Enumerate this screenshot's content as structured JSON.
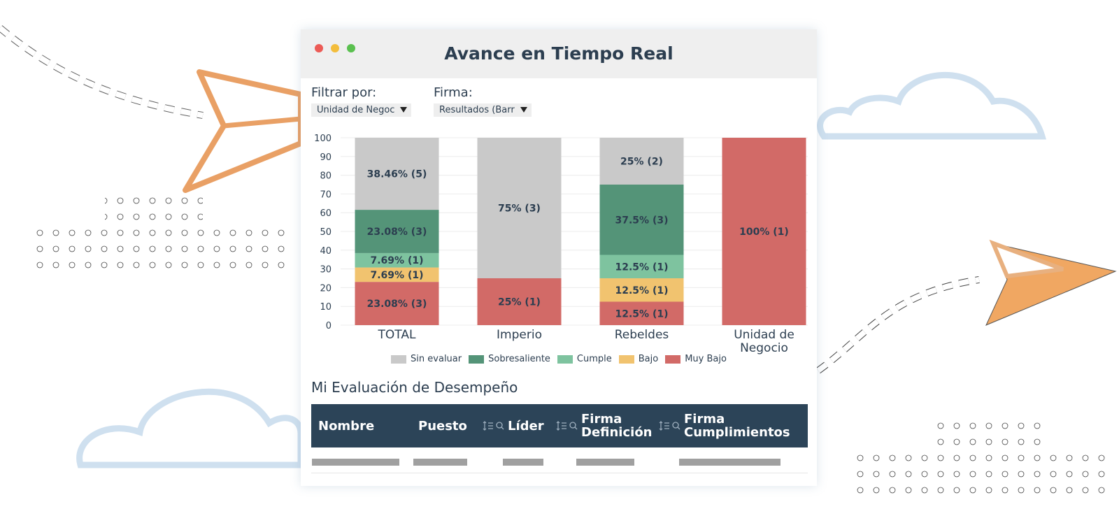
{
  "window": {
    "title": "Avance en Tiempo Real"
  },
  "filters": [
    {
      "label": "Filtrar por:",
      "value": "Unidad de Negoc"
    },
    {
      "label": "Firma:",
      "value": "Resultados (Barr"
    }
  ],
  "chart_data": {
    "type": "bar",
    "stacked": true,
    "categories": [
      "TOTAL",
      "Imperio",
      "Rebeldes",
      "Unidad de Negocio"
    ],
    "series": [
      {
        "name": "Sin evaluar",
        "color": "#c9c9c9",
        "values": [
          38.46,
          75,
          25,
          null
        ],
        "value_labels": [
          "38.46% (5)",
          "75% (3)",
          "25% (2)",
          null
        ]
      },
      {
        "name": "Sobresaliente",
        "color": "#549478",
        "values": [
          23.08,
          null,
          37.5,
          null
        ],
        "value_labels": [
          "23.08% (3)",
          null,
          "37.5% (3)",
          null
        ]
      },
      {
        "name": "Cumple",
        "color": "#7ec39f",
        "values": [
          7.69,
          null,
          12.5,
          null
        ],
        "value_labels": [
          "7.69% (1)",
          null,
          "12.5% (1)",
          null
        ]
      },
      {
        "name": "Bajo",
        "color": "#f1c36f",
        "values": [
          7.69,
          null,
          12.5,
          null
        ],
        "value_labels": [
          "7.69% (1)",
          null,
          "12.5% (1)",
          null
        ]
      },
      {
        "name": "Muy Bajo",
        "color": "#d26a67",
        "values": [
          23.08,
          25,
          12.5,
          100
        ],
        "value_labels": [
          "23.08% (3)",
          "25% (1)",
          "12.5% (1)",
          "100% (1)"
        ]
      }
    ],
    "ylim": [
      0,
      100
    ],
    "yticks": [
      0,
      10,
      20,
      30,
      40,
      50,
      60,
      70,
      80,
      90,
      100
    ],
    "grid": true
  },
  "section": {
    "title": "Mi Evaluación de Desempeño"
  },
  "table": {
    "headers": [
      "Nombre",
      "Puesto",
      "Líder",
      "Firma Definición",
      "Firma Cumplimientos"
    ]
  }
}
